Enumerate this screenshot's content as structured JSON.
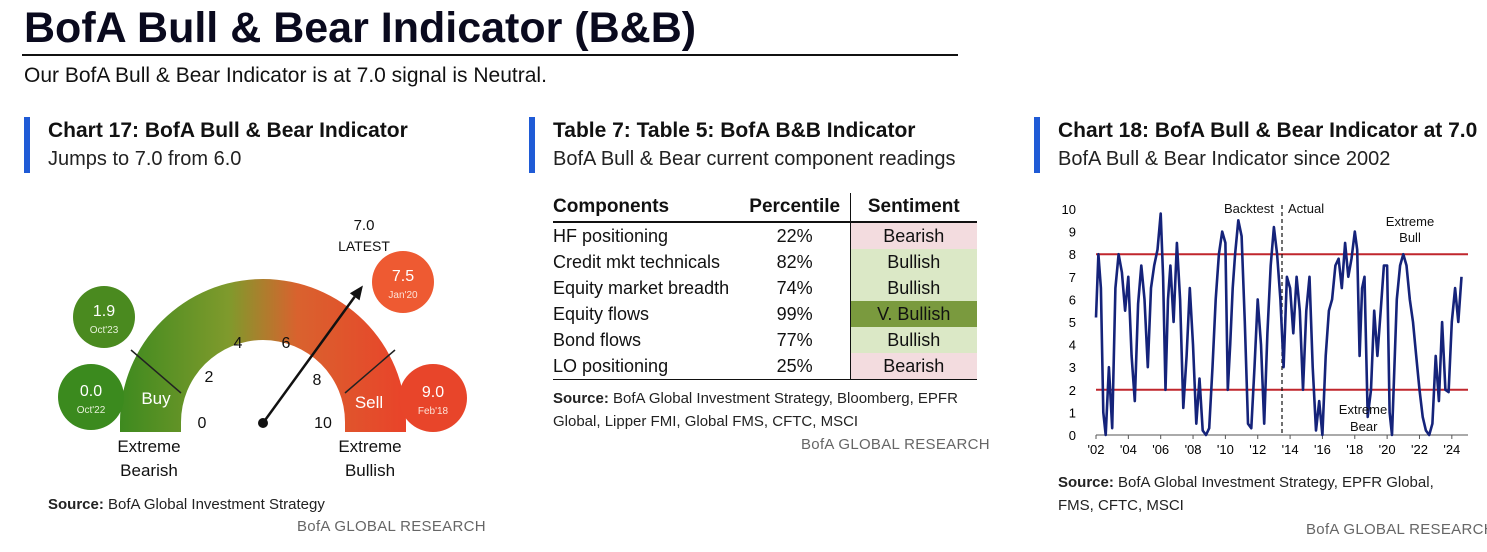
{
  "header": {
    "title": "BofA Bull & Bear Indicator (B&B)",
    "subtitle": "Our BofA Bull & Bear Indicator is at 7.0 signal is Neutral."
  },
  "colors": {
    "accent_bar": "#1f5bd6",
    "bull_line": "#c0262d",
    "series": "#15237a",
    "buy": "#4a8a1f",
    "sell": "#e8452a"
  },
  "chart17": {
    "title": "Chart 17: BofA Bull & Bear Indicator",
    "subtitle": "Jumps to 7.0 from 6.0",
    "latest_value": "7.0",
    "latest_label": "LATEST",
    "buy_label": "Buy",
    "sell_label": "Sell",
    "left_label_1": "Extreme",
    "left_label_2": "Bearish",
    "right_label_1": "Extreme",
    "right_label_2": "Bullish",
    "ticks": [
      "0",
      "2",
      "4",
      "6",
      "8",
      "10"
    ],
    "bubbles": [
      {
        "value": "1.9",
        "date": "Oct'23",
        "color": "#4a8a1f"
      },
      {
        "value": "0.0",
        "date": "Oct'22",
        "color": "#3b8a1e"
      },
      {
        "value": "7.5",
        "date": "Jan'20",
        "color": "#ee5a32"
      },
      {
        "value": "9.0",
        "date": "Feb'18",
        "color": "#e8452a"
      }
    ],
    "source_label": "Source:",
    "source_text": "BofA Global Investment Strategy",
    "brand": "BofA GLOBAL RESEARCH",
    "gauge_value": 7.0
  },
  "table7": {
    "title": "Table 7: Table 5: BofA B&B Indicator",
    "subtitle": "BofA Bull & Bear current component readings",
    "headers": [
      "Components",
      "Percentile",
      "Sentiment"
    ],
    "rows": [
      {
        "component": "HF positioning",
        "percentile": "22%",
        "sentiment": "Bearish"
      },
      {
        "component": "Credit mkt technicals",
        "percentile": "82%",
        "sentiment": "Bullish"
      },
      {
        "component": "Equity market breadth",
        "percentile": "74%",
        "sentiment": "Bullish"
      },
      {
        "component": "Equity flows",
        "percentile": "99%",
        "sentiment": "V. Bullish"
      },
      {
        "component": "Bond flows",
        "percentile": "77%",
        "sentiment": "Bullish"
      },
      {
        "component": "LO positioning",
        "percentile": "25%",
        "sentiment": "Bearish"
      }
    ],
    "source_label": "Source:",
    "source_text": "BofA Global Investment Strategy, Bloomberg, EPFR Global, Lipper FMI, Global FMS, CFTC, MSCI",
    "brand": "BofA GLOBAL RESEARCH"
  },
  "chart18": {
    "title": "Chart 18: BofA Bull & Bear Indicator at 7.0",
    "subtitle": "BofA Bull & Bear Indicator since 2002",
    "backtest_label": "Backtest",
    "actual_label": "Actual",
    "bull_label_1": "Extreme",
    "bull_label_2": "Bull",
    "bear_label_1": "Extreme",
    "bear_label_2": "Bear",
    "source_label": "Source:",
    "source_text": "BofA Global Investment Strategy, EPFR Global, FMS, CFTC, MSCI",
    "brand": "BofA GLOBAL RESEARCH"
  },
  "chart_data": [
    {
      "type": "gauge",
      "title": "Chart 17: BofA Bull & Bear Indicator",
      "value": 7.0,
      "range": [
        0,
        10
      ],
      "ticks": [
        0,
        2,
        4,
        6,
        8,
        10
      ],
      "zones": [
        {
          "name": "Buy",
          "range": [
            0,
            2
          ]
        },
        {
          "name": "Sell",
          "range": [
            8,
            10
          ]
        }
      ],
      "history": [
        {
          "date": "Oct'23",
          "value": 1.9
        },
        {
          "date": "Oct'22",
          "value": 0.0
        },
        {
          "date": "Jan'20",
          "value": 7.5
        },
        {
          "date": "Feb'18",
          "value": 9.0
        }
      ]
    },
    {
      "type": "line",
      "title": "Chart 18: BofA Bull & Bear Indicator at 7.0",
      "xlim": [
        2002,
        2025
      ],
      "ylim": [
        0,
        10
      ],
      "yticks": [
        0,
        1,
        2,
        3,
        4,
        5,
        6,
        7,
        8,
        9,
        10
      ],
      "xticks": [
        "'02",
        "'04",
        "'06",
        "'08",
        "'10",
        "'12",
        "'14",
        "'16",
        "'18",
        "'20",
        "'22",
        "'24"
      ],
      "reference_lines": [
        8,
        2
      ],
      "split_year": 2013.5,
      "series": [
        {
          "x": [
            2002.0,
            2002.15,
            2002.3,
            2002.45,
            2002.6,
            2002.8,
            2003.0,
            2003.2,
            2003.4,
            2003.6,
            2003.8,
            2004.0,
            2004.2,
            2004.4,
            2004.6,
            2004.8,
            2005.0,
            2005.2,
            2005.4,
            2005.6,
            2005.8,
            2006.0,
            2006.15,
            2006.3,
            2006.45,
            2006.6,
            2006.8,
            2007.0,
            2007.2,
            2007.4,
            2007.6,
            2007.8,
            2008.0,
            2008.2,
            2008.4,
            2008.6,
            2008.8,
            2009.0,
            2009.2,
            2009.4,
            2009.6,
            2009.8,
            2010.0,
            2010.15,
            2010.3,
            2010.45,
            2010.6,
            2010.8,
            2011.0,
            2011.2,
            2011.4,
            2011.6,
            2011.8,
            2012.0,
            2012.2,
            2012.4,
            2012.6,
            2012.8,
            2013.0,
            2013.2,
            2013.4,
            2013.6,
            2013.8,
            2014.0,
            2014.2,
            2014.4,
            2014.6,
            2014.8,
            2015.0,
            2015.2,
            2015.4,
            2015.6,
            2015.8,
            2016.0,
            2016.2,
            2016.4,
            2016.6,
            2016.8,
            2017.0,
            2017.2,
            2017.4,
            2017.6,
            2017.8,
            2018.0,
            2018.15,
            2018.3,
            2018.45,
            2018.6,
            2018.8,
            2019.0,
            2019.2,
            2019.4,
            2019.6,
            2019.8,
            2020.0,
            2020.15,
            2020.3,
            2020.45,
            2020.6,
            2020.8,
            2021.0,
            2021.2,
            2021.4,
            2021.6,
            2021.8,
            2022.0,
            2022.2,
            2022.4,
            2022.6,
            2022.8,
            2023.0,
            2023.2,
            2023.4,
            2023.6,
            2023.8,
            2024.0,
            2024.2,
            2024.4,
            2024.6
          ],
          "y": [
            5.2,
            8.0,
            6.5,
            1.0,
            0.0,
            3.0,
            0.3,
            6.5,
            8.0,
            7.2,
            5.5,
            7.0,
            3.5,
            1.5,
            5.8,
            7.5,
            6.0,
            3.0,
            6.5,
            7.5,
            8.2,
            9.8,
            7.0,
            2.0,
            6.0,
            7.5,
            5.0,
            8.5,
            6.0,
            1.2,
            3.5,
            6.5,
            4.0,
            0.5,
            2.5,
            0.2,
            0.0,
            0.3,
            3.0,
            6.0,
            8.0,
            9.0,
            8.5,
            2.0,
            4.0,
            6.5,
            8.0,
            9.5,
            8.8,
            5.0,
            0.5,
            0.3,
            3.0,
            6.0,
            4.0,
            0.5,
            4.5,
            7.5,
            9.2,
            8.0,
            6.0,
            3.0,
            7.0,
            6.5,
            4.5,
            7.0,
            5.5,
            2.0,
            5.5,
            7.0,
            3.0,
            0.2,
            1.5,
            0.0,
            3.5,
            5.5,
            6.0,
            7.5,
            7.8,
            6.5,
            8.5,
            7.0,
            7.8,
            9.0,
            8.2,
            3.5,
            6.5,
            7.0,
            0.8,
            2.0,
            5.5,
            3.5,
            5.5,
            7.5,
            7.5,
            1.0,
            0.0,
            3.0,
            6.0,
            7.5,
            8.0,
            7.5,
            6.0,
            5.0,
            3.5,
            2.0,
            0.8,
            0.2,
            0.0,
            0.5,
            3.5,
            1.5,
            5.0,
            2.0,
            1.9,
            5.0,
            6.5,
            5.0,
            7.0
          ]
        }
      ]
    }
  ]
}
